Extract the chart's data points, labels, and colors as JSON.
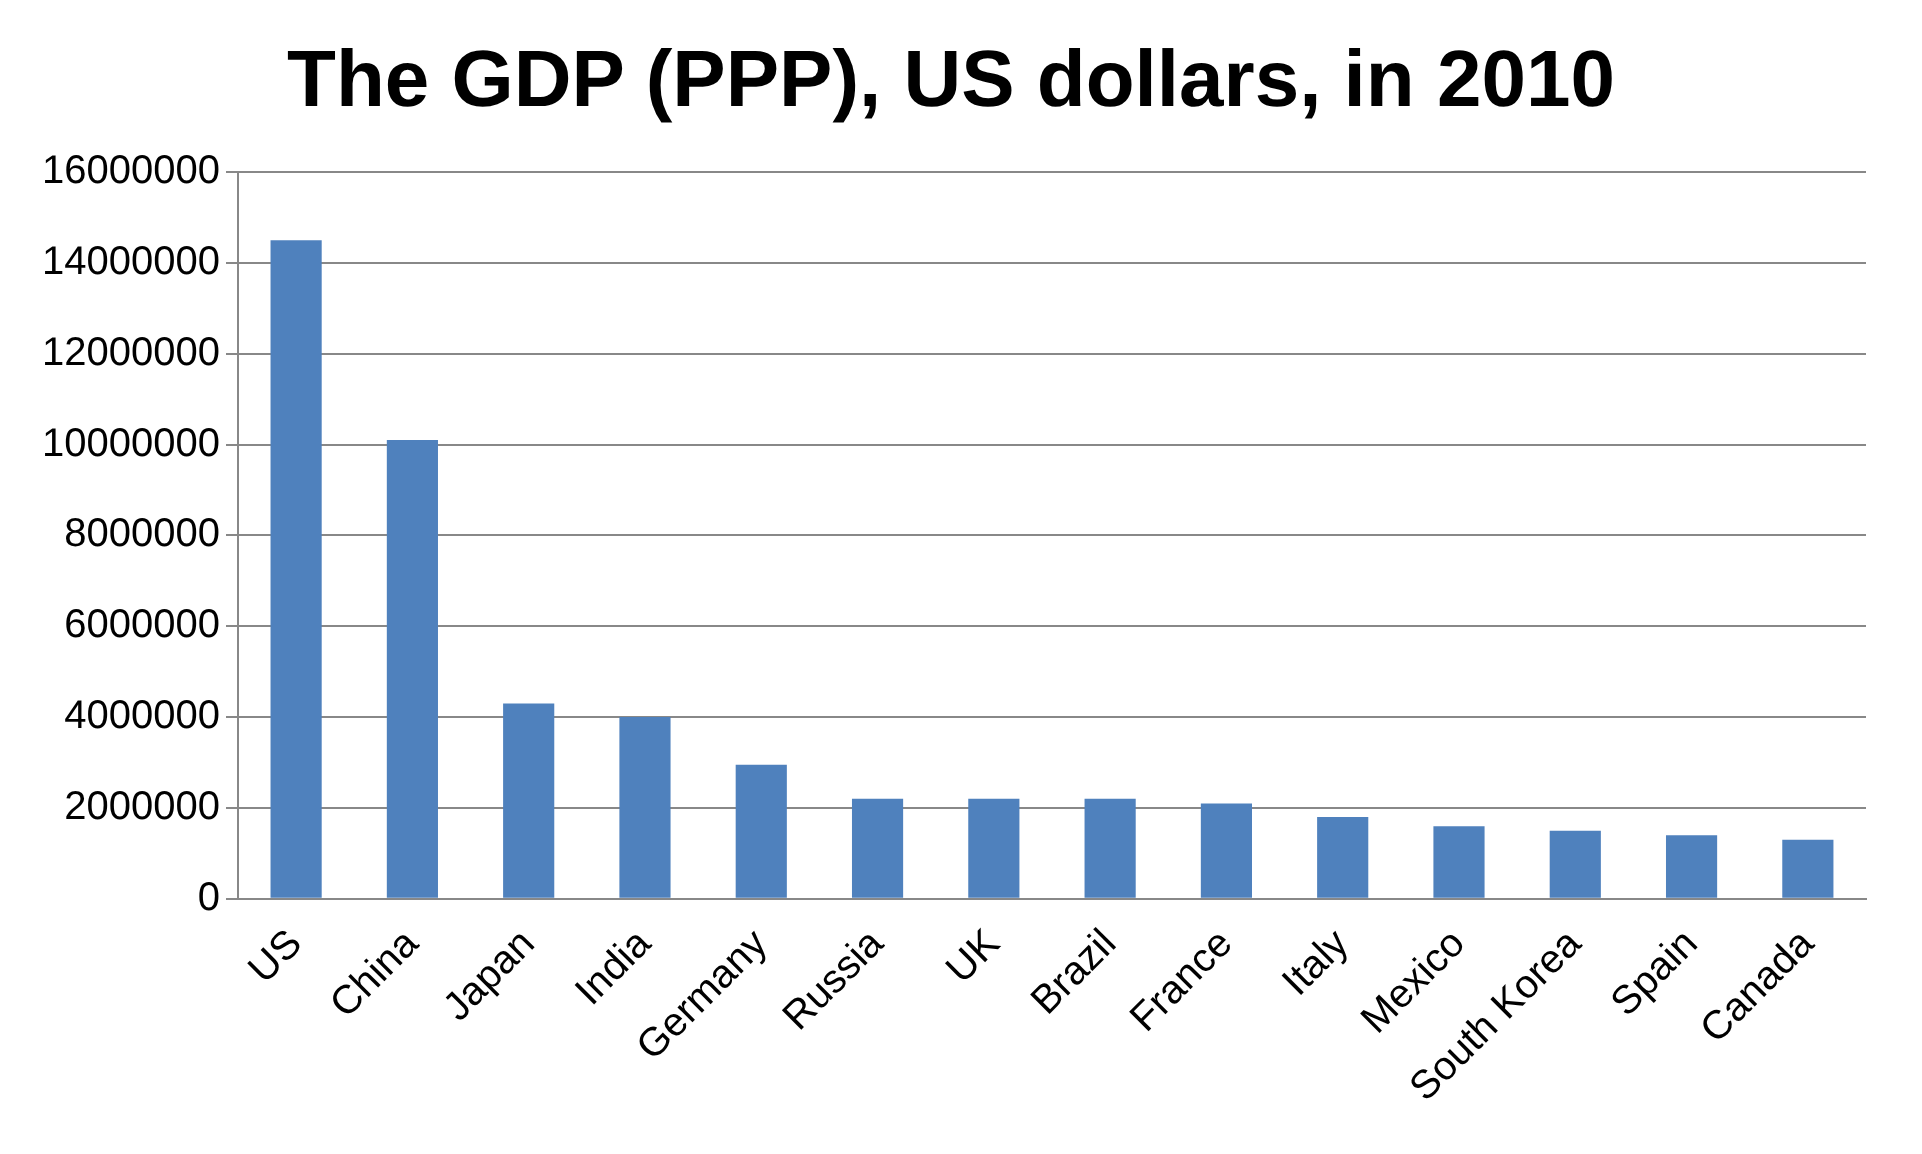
{
  "chart_data": {
    "type": "bar",
    "title": "The GDP (PPP), US dollars, in 2010",
    "categories": [
      "US",
      "China",
      "Japan",
      "India",
      "Germany",
      "Russia",
      "UK",
      "Brazil",
      "France",
      "Italy",
      "Mexico",
      "South Korea",
      "Spain",
      "Canada"
    ],
    "values": [
      14500000,
      10100000,
      4300000,
      4000000,
      2950000,
      2200000,
      2200000,
      2200000,
      2100000,
      1800000,
      1600000,
      1500000,
      1400000,
      1300000
    ],
    "color": "#4f81bd",
    "ylim": [
      0,
      16000000
    ],
    "yticks": [
      0,
      2000000,
      4000000,
      6000000,
      8000000,
      10000000,
      12000000,
      14000000,
      16000000
    ],
    "grid": "y",
    "legend": false
  }
}
